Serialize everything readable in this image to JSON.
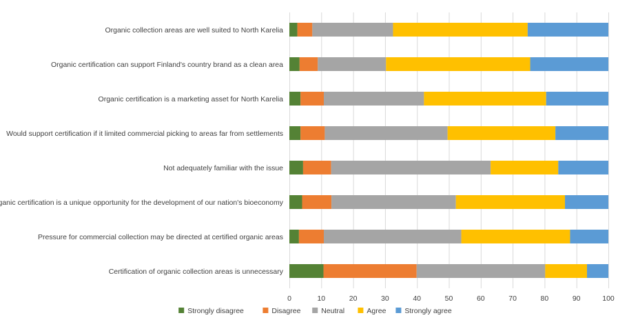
{
  "chart_data": {
    "type": "bar",
    "orientation": "horizontal",
    "stacked": true,
    "categories": [
      "Organic collection areas are well suited to North Karelia",
      "Organic certification can support Finland's country brand as a clean area",
      "Organic certification is a marketing asset for North Karelia",
      "Would support certification if it limited commercial picking to areas far from settlements",
      "Not adequately familiar with the issue",
      "Organic certification is a unique opportunity for the development of our nation's bioeconomy",
      "Pressure for commercial collection may be directed at certified organic areas",
      "Certification of organic collection areas is unnecessary"
    ],
    "series": [
      {
        "name": "Strongly disagree",
        "color": "#548235",
        "values": [
          2.5,
          3.2,
          3.5,
          3.5,
          4.3,
          4.0,
          3.0,
          10.7
        ]
      },
      {
        "name": "Disagree",
        "color": "#ED7D31",
        "values": [
          4.7,
          5.7,
          7.3,
          7.6,
          8.8,
          9.2,
          7.8,
          29.2
        ]
      },
      {
        "name": "Neutral",
        "color": "#A5A5A5",
        "values": [
          25.3,
          21.4,
          31.4,
          38.5,
          50.0,
          39.0,
          43.1,
          40.3
        ]
      },
      {
        "name": "Agree",
        "color": "#FFC000",
        "values": [
          42.2,
          45.2,
          38.3,
          33.8,
          21.2,
          34.2,
          34.1,
          13.1
        ]
      },
      {
        "name": "Strongly agree",
        "color": "#5B9BD5",
        "values": [
          25.3,
          24.5,
          19.5,
          16.6,
          15.7,
          13.6,
          12.0,
          6.7
        ]
      }
    ],
    "xlim": [
      0,
      100
    ],
    "xticks": [
      0,
      10,
      20,
      30,
      40,
      50,
      60,
      70,
      80,
      90,
      100
    ],
    "grid": true,
    "legend_position": "bottom"
  }
}
